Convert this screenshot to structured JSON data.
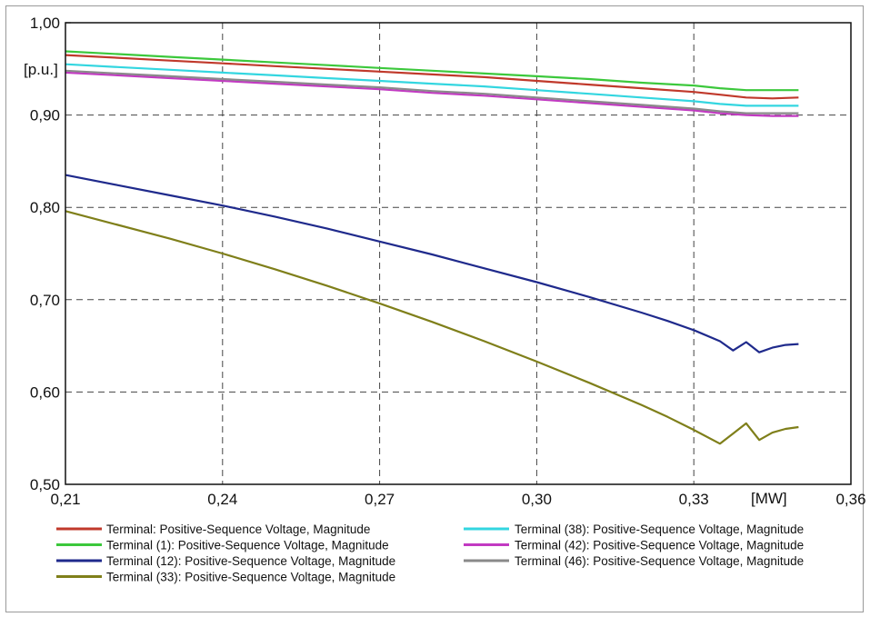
{
  "chart_data": {
    "type": "line",
    "xlabel": "[MW]",
    "ylabel": "[p.u.]",
    "xlim": [
      0.21,
      0.36
    ],
    "ylim": [
      0.5,
      1.0
    ],
    "x_ticks": [
      0.21,
      0.24,
      0.27,
      0.3,
      0.33,
      0.36
    ],
    "x_tick_labels": [
      "0,21",
      "0,24",
      "0,27",
      "0,30",
      "0,33",
      "0,36"
    ],
    "y_ticks": [
      0.5,
      0.6,
      0.7,
      0.8,
      0.9,
      1.0
    ],
    "y_tick_labels": [
      "0,50",
      "0,60",
      "0,70",
      "0,80",
      "0,90",
      "1,00"
    ],
    "grid": true,
    "legend_placement": "bottom",
    "series": [
      {
        "name": "Terminal: Positive-Sequence Voltage, Magnitude",
        "color": "#c0392b",
        "x": [
          0.21,
          0.22,
          0.23,
          0.24,
          0.25,
          0.26,
          0.27,
          0.28,
          0.29,
          0.3,
          0.31,
          0.32,
          0.33,
          0.335,
          0.34,
          0.345,
          0.35
        ],
        "y": [
          0.965,
          0.962,
          0.959,
          0.956,
          0.953,
          0.95,
          0.947,
          0.944,
          0.941,
          0.937,
          0.933,
          0.929,
          0.925,
          0.922,
          0.919,
          0.918,
          0.919
        ]
      },
      {
        "name": "Terminal (1): Positive-Sequence Voltage, Magnitude",
        "color": "#3cc83c",
        "x": [
          0.21,
          0.22,
          0.23,
          0.24,
          0.25,
          0.26,
          0.27,
          0.28,
          0.29,
          0.3,
          0.31,
          0.32,
          0.33,
          0.335,
          0.34,
          0.345,
          0.35
        ],
        "y": [
          0.969,
          0.966,
          0.963,
          0.96,
          0.957,
          0.954,
          0.951,
          0.948,
          0.945,
          0.942,
          0.939,
          0.935,
          0.932,
          0.929,
          0.927,
          0.927,
          0.927
        ]
      },
      {
        "name": "Terminal (12): Positive-Sequence Voltage, Magnitude",
        "color": "#1f2a8c",
        "x": [
          0.21,
          0.22,
          0.23,
          0.24,
          0.25,
          0.26,
          0.27,
          0.28,
          0.29,
          0.3,
          0.31,
          0.32,
          0.325,
          0.33,
          0.335,
          0.3375,
          0.34,
          0.3425,
          0.345,
          0.3475,
          0.35
        ],
        "y": [
          0.835,
          0.824,
          0.813,
          0.802,
          0.79,
          0.777,
          0.763,
          0.749,
          0.734,
          0.719,
          0.703,
          0.686,
          0.677,
          0.667,
          0.655,
          0.645,
          0.654,
          0.643,
          0.648,
          0.651,
          0.652
        ]
      },
      {
        "name": "Terminal (33): Positive-Sequence Voltage, Magnitude",
        "color": "#7f7f1a",
        "x": [
          0.21,
          0.22,
          0.23,
          0.24,
          0.25,
          0.26,
          0.27,
          0.28,
          0.29,
          0.3,
          0.31,
          0.32,
          0.325,
          0.33,
          0.335,
          0.3375,
          0.34,
          0.3425,
          0.345,
          0.3475,
          0.35
        ],
        "y": [
          0.796,
          0.781,
          0.766,
          0.75,
          0.733,
          0.715,
          0.696,
          0.676,
          0.655,
          0.633,
          0.61,
          0.586,
          0.573,
          0.559,
          0.544,
          0.555,
          0.566,
          0.548,
          0.556,
          0.56,
          0.562
        ]
      },
      {
        "name": "Terminal (38): Positive-Sequence Voltage, Magnitude",
        "color": "#33d6e0",
        "x": [
          0.21,
          0.22,
          0.23,
          0.24,
          0.25,
          0.26,
          0.27,
          0.28,
          0.29,
          0.3,
          0.31,
          0.32,
          0.33,
          0.335,
          0.34,
          0.345,
          0.35
        ],
        "y": [
          0.955,
          0.952,
          0.949,
          0.946,
          0.943,
          0.94,
          0.937,
          0.934,
          0.931,
          0.927,
          0.923,
          0.919,
          0.915,
          0.912,
          0.91,
          0.91,
          0.91
        ]
      },
      {
        "name": "Terminal (42): Positive-Sequence Voltage, Magnitude",
        "color": "#c23ac2",
        "x": [
          0.21,
          0.22,
          0.23,
          0.24,
          0.25,
          0.26,
          0.27,
          0.28,
          0.29,
          0.3,
          0.31,
          0.32,
          0.33,
          0.335,
          0.34,
          0.345,
          0.35
        ],
        "y": [
          0.946,
          0.943,
          0.94,
          0.937,
          0.934,
          0.931,
          0.928,
          0.924,
          0.921,
          0.917,
          0.913,
          0.909,
          0.905,
          0.902,
          0.9,
          0.899,
          0.899
        ]
      },
      {
        "name": "Terminal (46): Positive-Sequence Voltage, Magnitude",
        "color": "#8a8a8a",
        "x": [
          0.21,
          0.22,
          0.23,
          0.24,
          0.25,
          0.26,
          0.27,
          0.28,
          0.29,
          0.3,
          0.31,
          0.32,
          0.33,
          0.335,
          0.34,
          0.345,
          0.35
        ],
        "y": [
          0.948,
          0.945,
          0.942,
          0.939,
          0.936,
          0.933,
          0.93,
          0.926,
          0.923,
          0.919,
          0.915,
          0.911,
          0.907,
          0.904,
          0.902,
          0.902,
          0.902
        ]
      }
    ],
    "legend": {
      "left": [
        {
          "label": "Terminal: Positive-Sequence Voltage, Magnitude",
          "color": "#c0392b"
        },
        {
          "label": "Terminal (1): Positive-Sequence Voltage, Magnitude",
          "color": "#3cc83c"
        },
        {
          "label": "Terminal (12): Positive-Sequence Voltage, Magnitude",
          "color": "#1f2a8c"
        },
        {
          "label": "Terminal (33): Positive-Sequence Voltage, Magnitude",
          "color": "#7f7f1a"
        }
      ],
      "right": [
        {
          "label": "Terminal (38): Positive-Sequence Voltage, Magnitude",
          "color": "#33d6e0"
        },
        {
          "label": "Terminal (42): Positive-Sequence Voltage, Magnitude",
          "color": "#c23ac2"
        },
        {
          "label": "Terminal (46): Positive-Sequence Voltage, Magnitude",
          "color": "#8a8a8a"
        }
      ]
    }
  }
}
